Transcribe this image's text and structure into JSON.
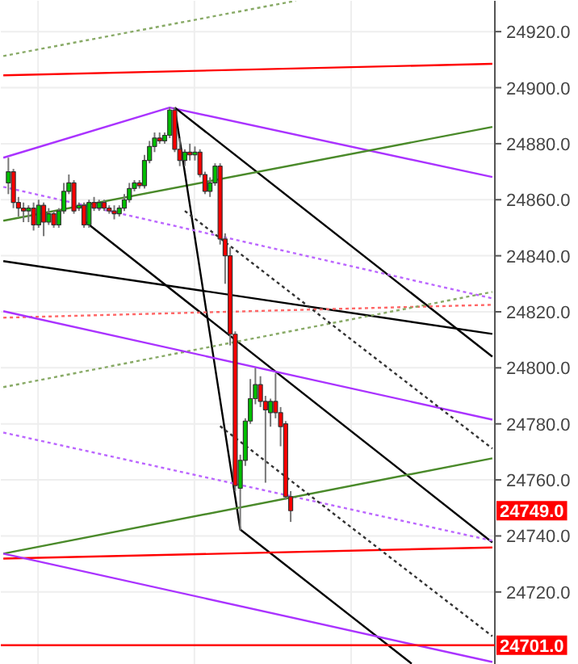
{
  "chart_data": {
    "type": "candlestick",
    "categories": [
      null,
      null,
      null,
      null,
      null,
      null,
      null,
      null,
      null,
      null,
      null,
      null,
      null,
      null,
      null,
      null,
      null,
      null,
      null,
      null,
      null,
      null,
      null,
      null,
      null,
      null,
      null,
      null,
      null,
      null,
      null,
      null,
      null,
      null,
      null,
      null,
      null,
      null,
      null,
      null,
      null,
      null,
      null,
      null,
      null,
      null,
      null,
      null,
      null,
      null,
      null,
      null,
      null,
      null,
      null,
      null,
      null,
      null,
      null,
      null,
      null,
      null,
      null,
      null,
      null,
      null,
      null,
      null,
      null,
      null,
      null,
      null,
      null,
      null,
      null,
      null,
      null,
      null,
      null,
      null,
      null,
      null,
      null,
      null,
      null,
      null,
      null,
      null,
      null,
      null,
      null,
      null,
      null,
      null,
      null,
      null,
      null,
      null
    ],
    "ohlc": [
      null,
      [
        24866,
        24875,
        24862,
        24870
      ],
      [
        24870,
        24871,
        24857,
        24859
      ],
      [
        24859,
        24861,
        24854,
        24857
      ],
      [
        24857,
        24859,
        24852,
        24856
      ],
      [
        24856,
        24858,
        24852,
        24857
      ],
      [
        24857,
        24859,
        24849,
        24851
      ],
      [
        24851,
        24860,
        24850,
        24858
      ],
      [
        24858,
        24859,
        24847,
        24852
      ],
      [
        24852,
        24857,
        24851,
        24855
      ],
      [
        24855,
        24856,
        24850,
        24851
      ],
      [
        24851,
        24857,
        24850,
        24856
      ],
      [
        24856,
        24866,
        24855,
        24863
      ],
      [
        24863,
        24869,
        24862,
        24866
      ],
      [
        24866,
        24867,
        24855,
        24856
      ],
      [
        24857,
        24859,
        24856,
        24858
      ],
      [
        24858,
        24859,
        24850,
        24851
      ],
      [
        24851,
        24860,
        24850,
        24859
      ],
      [
        24859,
        24861,
        24856,
        24857
      ],
      [
        24857,
        24860,
        24856,
        24859
      ],
      [
        24859,
        24860,
        24856,
        24857
      ],
      [
        24857,
        24858,
        24855,
        24856
      ],
      [
        24856,
        24858,
        24853,
        24855
      ],
      [
        24855,
        24858,
        24854,
        24857
      ],
      [
        24857,
        24862,
        24856,
        24860
      ],
      [
        24860,
        24866,
        24859,
        24864
      ],
      [
        24864,
        24867,
        24863,
        24866
      ],
      [
        24866,
        24867,
        24864,
        24865
      ],
      [
        24865,
        24876,
        24864,
        24874
      ],
      [
        24874,
        24881,
        24873,
        24879
      ],
      [
        24879,
        24884,
        24877,
        24882
      ],
      [
        24882,
        24884,
        24880,
        24881
      ],
      [
        24881,
        24884,
        24880,
        24883
      ],
      [
        24883,
        24893,
        24882,
        24892
      ],
      [
        24892,
        24893,
        24877,
        24878
      ],
      [
        24878,
        24882,
        24872,
        24874
      ],
      [
        24874,
        24878,
        24872,
        24877
      ],
      [
        24877,
        24880,
        24874,
        24876
      ],
      [
        24876,
        24879,
        24874,
        24877
      ],
      [
        24877,
        24878,
        24868,
        24869
      ],
      [
        24869,
        24870,
        24862,
        24863
      ],
      [
        24863,
        24868,
        24861,
        24866
      ],
      [
        24866,
        24873,
        24865,
        24872
      ],
      [
        24872,
        24873,
        24844,
        24846
      ],
      [
        24846,
        24848,
        24830,
        24840
      ],
      [
        24840,
        24843,
        24808,
        24812
      ],
      [
        24812,
        24813,
        24756,
        24758
      ],
      [
        24757,
        24769,
        24742,
        24767
      ],
      [
        24767,
        24782,
        24765,
        24781
      ],
      [
        24781,
        24796,
        24780,
        24789
      ],
      [
        24789,
        24800,
        24787,
        24794
      ],
      [
        24794,
        24797,
        24786,
        24788
      ],
      [
        24788,
        24790,
        24759,
        24785
      ],
      [
        24784,
        24789,
        24779,
        24788
      ],
      [
        24788,
        24798,
        24782,
        24784
      ],
      [
        24784,
        24786,
        24772,
        24779
      ],
      [
        24780,
        24781,
        24753,
        24754
      ],
      [
        24754,
        24756,
        24745,
        24749
      ],
      null,
      null,
      null,
      null,
      null,
      null,
      null,
      null,
      null,
      null,
      null,
      null,
      null,
      null,
      null,
      null,
      null,
      null,
      null,
      null,
      null,
      null,
      null,
      null,
      null,
      null,
      null,
      null,
      null,
      null,
      null,
      null,
      null,
      null,
      null,
      null,
      null,
      null,
      null,
      null
    ],
    "colors": [
      null,
      "#00c000",
      "#ff0000",
      "#ff0000",
      "#ff0000",
      "#00c000",
      "#ff0000",
      "#00c000",
      "#ff0000",
      "#00c000",
      "#ff0000",
      "#00c000",
      "#00c000",
      "#00c000",
      "#ff0000",
      "#00c000",
      "#ff0000",
      "#00c000",
      "#ff0000",
      "#00c000",
      "#ff0000",
      "#ff0000",
      "#ff0000",
      "#00c000",
      "#00c000",
      "#00c000",
      "#00c000",
      "#ff0000",
      "#00c000",
      "#00c000",
      "#00c000",
      "#ff0000",
      "#00c000",
      "#00c000",
      "#ff0000",
      "#ff0000",
      "#00c000",
      "#ff0000",
      "#00c000",
      "#ff0000",
      "#ff0000",
      "#00c000",
      "#00c000",
      "#ff0000",
      "#ff0000",
      "#ff0000",
      "#ff0000",
      "#00c000",
      "#00c000",
      "#00c000",
      "#00c000",
      "#ff0000",
      "#ff0000",
      "#00c000",
      "#ff0000",
      "#ff0000",
      "#ff0000",
      "#ff0000",
      null,
      null,
      null,
      null,
      null,
      null,
      null,
      null,
      null,
      null,
      null,
      null,
      null,
      null,
      null,
      null,
      null,
      null,
      null,
      null,
      null,
      null,
      null,
      null,
      null,
      null,
      null,
      null,
      null,
      null,
      null,
      null,
      null,
      null,
      null,
      null,
      null,
      null,
      null,
      null
    ],
    "series": [
      {
        "type": "line",
        "color": "#ff0000",
        "line_style": "solid",
        "values": [
          24904.4,
          null,
          null,
          null,
          null,
          null,
          null,
          null,
          null,
          null,
          null,
          null,
          null,
          null,
          null,
          null,
          null,
          null,
          null,
          null,
          null,
          null,
          null,
          null,
          null,
          null,
          null,
          null,
          null,
          null,
          null,
          null,
          null,
          null,
          null,
          null,
          null,
          null,
          null,
          null,
          null,
          null,
          null,
          null,
          null,
          null,
          null,
          null,
          null,
          null,
          null,
          null,
          null,
          null,
          null,
          null,
          null,
          null,
          null,
          null,
          null,
          null,
          null,
          null,
          null,
          null,
          null,
          null,
          null,
          null,
          null,
          null,
          null,
          null,
          null,
          null,
          null,
          null,
          null,
          null,
          null,
          null,
          null,
          null,
          null,
          null,
          null,
          null,
          null,
          null,
          null,
          null,
          null,
          null,
          null,
          null,
          null,
          24908.5
        ]
      },
      {
        "type": "line",
        "color": "#88aa66",
        "line_style": "dotted",
        "values": [
          24911.3,
          null,
          null,
          null,
          null,
          null,
          null,
          null,
          null,
          null,
          null,
          null,
          null,
          null,
          null,
          null,
          null,
          null,
          null,
          null,
          null,
          null,
          null,
          null,
          null,
          null,
          null,
          null,
          null,
          null,
          null,
          null,
          null,
          null,
          null,
          null,
          null,
          null,
          null,
          null,
          null,
          null,
          null,
          null,
          null,
          null,
          null,
          null,
          null,
          null,
          null,
          null,
          null,
          null,
          null,
          null,
          null,
          null,
          24931,
          null,
          null,
          null,
          null,
          null,
          null,
          null,
          null,
          null,
          null,
          null,
          null,
          null,
          null,
          null,
          null,
          null,
          null,
          null,
          null,
          null,
          null,
          null,
          null,
          null,
          null,
          null,
          null,
          null,
          null,
          null,
          null,
          null,
          null,
          null,
          null,
          null,
          null,
          null
        ]
      },
      {
        "type": "line",
        "color": "#aa33ff",
        "line_style": "solid",
        "values": [
          24875,
          null,
          null,
          null,
          null,
          null,
          null,
          null,
          null,
          null,
          null,
          null,
          null,
          null,
          null,
          null,
          null,
          null,
          null,
          null,
          null,
          null,
          null,
          null,
          null,
          null,
          null,
          null,
          null,
          null,
          null,
          null,
          null,
          24892.9,
          null,
          null,
          null,
          null,
          null,
          null,
          null,
          null,
          null,
          null,
          null,
          null,
          null,
          null,
          null,
          null,
          null,
          null,
          null,
          null,
          null,
          null,
          null,
          null,
          null,
          null,
          null,
          null,
          null,
          null,
          null,
          null,
          null,
          null,
          null,
          null,
          null,
          null,
          null,
          null,
          null,
          null,
          null,
          null,
          null,
          null,
          null,
          null,
          null,
          null,
          null,
          null,
          null,
          null,
          null,
          null,
          null,
          null,
          null,
          null,
          null,
          null,
          null,
          24868.1
        ]
      },
      {
        "type": "line",
        "color": "#000000",
        "line_style": "solid",
        "values": [
          null,
          null,
          null,
          null,
          null,
          null,
          null,
          null,
          null,
          null,
          null,
          null,
          null,
          null,
          null,
          null,
          null,
          null,
          null,
          null,
          null,
          null,
          null,
          null,
          null,
          null,
          null,
          null,
          null,
          null,
          null,
          null,
          null,
          null,
          24892.9,
          null,
          null,
          null,
          null,
          null,
          null,
          null,
          null,
          null,
          null,
          null,
          null,
          null,
          null,
          null,
          null,
          null,
          null,
          null,
          null,
          null,
          null,
          null,
          null,
          null,
          null,
          null,
          null,
          null,
          null,
          null,
          null,
          null,
          null,
          null,
          null,
          null,
          null,
          null,
          null,
          null,
          null,
          null,
          null,
          null,
          null,
          null,
          null,
          null,
          null,
          null,
          null,
          null,
          null,
          null,
          null,
          null,
          null,
          null,
          null,
          null,
          null,
          24804
        ]
      },
      {
        "type": "line",
        "color": "#4a8a2a",
        "line_style": "solid",
        "values": [
          24852.5,
          null,
          null,
          null,
          null,
          null,
          null,
          null,
          null,
          null,
          null,
          null,
          null,
          null,
          null,
          null,
          null,
          null,
          null,
          null,
          null,
          null,
          null,
          null,
          null,
          null,
          null,
          null,
          null,
          null,
          null,
          null,
          null,
          null,
          null,
          null,
          null,
          null,
          null,
          null,
          null,
          null,
          null,
          null,
          null,
          null,
          null,
          null,
          null,
          null,
          null,
          null,
          null,
          null,
          null,
          null,
          null,
          null,
          null,
          null,
          null,
          null,
          null,
          null,
          null,
          null,
          null,
          null,
          null,
          null,
          null,
          null,
          null,
          null,
          null,
          null,
          null,
          null,
          null,
          null,
          null,
          null,
          null,
          null,
          null,
          null,
          null,
          null,
          null,
          null,
          null,
          null,
          null,
          null,
          null,
          null,
          null,
          24886
        ]
      },
      {
        "type": "line",
        "color": "#000000",
        "line_style": "solid",
        "values": [
          null,
          null,
          null,
          null,
          null,
          null,
          null,
          null,
          null,
          null,
          null,
          null,
          null,
          null,
          null,
          null,
          24852.5,
          null,
          null,
          null,
          null,
          null,
          null,
          null,
          null,
          null,
          null,
          null,
          null,
          null,
          null,
          null,
          null,
          null,
          null,
          null,
          null,
          null,
          null,
          null,
          null,
          null,
          null,
          null,
          null,
          null,
          null,
          null,
          null,
          null,
          null,
          null,
          null,
          null,
          null,
          null,
          null,
          null,
          null,
          null,
          null,
          null,
          null,
          null,
          null,
          null,
          null,
          null,
          null,
          null,
          null,
          null,
          null,
          null,
          null,
          null,
          null,
          null,
          null,
          null,
          null,
          null,
          null,
          null,
          null,
          null,
          null,
          null,
          null,
          null,
          null,
          null,
          null,
          null,
          null,
          null,
          null,
          24737.7
        ]
      },
      {
        "type": "line",
        "color": "#000000",
        "line_style": "solid",
        "values": [
          null,
          null,
          null,
          null,
          null,
          null,
          null,
          null,
          null,
          null,
          null,
          null,
          null,
          null,
          null,
          null,
          null,
          null,
          null,
          null,
          null,
          null,
          null,
          null,
          null,
          null,
          null,
          null,
          null,
          null,
          null,
          null,
          null,
          null,
          24892.9,
          null,
          null,
          null,
          null,
          null,
          null,
          null,
          null,
          null,
          null,
          null,
          null,
          24742.3,
          null,
          null,
          null,
          null,
          null,
          null,
          null,
          null,
          null,
          null,
          null,
          null,
          null,
          null,
          null,
          null,
          null,
          null,
          null,
          null,
          null,
          null,
          null,
          null,
          null,
          null,
          null,
          null,
          null,
          null,
          null,
          null,
          null,
          24694.4,
          null,
          null,
          null,
          null,
          null,
          null,
          null,
          null,
          null,
          null,
          null,
          null,
          null,
          null,
          null,
          null
        ]
      },
      {
        "type": "line",
        "color": "#bb66ff",
        "line_style": "dotted",
        "values": [
          24864.6,
          null,
          null,
          null,
          null,
          null,
          null,
          null,
          null,
          null,
          null,
          null,
          null,
          null,
          null,
          null,
          null,
          null,
          null,
          null,
          null,
          null,
          null,
          null,
          null,
          null,
          null,
          null,
          null,
          null,
          null,
          null,
          null,
          null,
          null,
          null,
          null,
          null,
          null,
          null,
          null,
          null,
          null,
          null,
          null,
          null,
          null,
          null,
          null,
          null,
          null,
          null,
          null,
          null,
          null,
          null,
          null,
          null,
          null,
          null,
          null,
          null,
          null,
          null,
          null,
          null,
          null,
          null,
          null,
          null,
          null,
          null,
          null,
          null,
          null,
          null,
          null,
          null,
          null,
          null,
          null,
          null,
          null,
          null,
          null,
          null,
          null,
          null,
          null,
          null,
          null,
          null,
          null,
          null,
          null,
          null,
          null,
          24824.8
        ]
      },
      {
        "type": "line",
        "color": "#000000",
        "line_style": "solid",
        "values": [
          24838.1,
          null,
          null,
          null,
          null,
          null,
          null,
          null,
          null,
          null,
          null,
          null,
          null,
          null,
          null,
          null,
          null,
          null,
          null,
          null,
          null,
          null,
          null,
          null,
          null,
          null,
          null,
          null,
          null,
          null,
          null,
          null,
          null,
          null,
          null,
          null,
          null,
          null,
          null,
          null,
          null,
          null,
          null,
          null,
          null,
          null,
          null,
          null,
          null,
          null,
          null,
          null,
          null,
          null,
          null,
          null,
          null,
          null,
          null,
          null,
          null,
          null,
          null,
          null,
          null,
          null,
          null,
          null,
          null,
          null,
          null,
          null,
          null,
          null,
          null,
          null,
          null,
          null,
          null,
          null,
          null,
          null,
          null,
          null,
          null,
          null,
          null,
          null,
          null,
          null,
          null,
          null,
          null,
          null,
          null,
          null,
          null,
          24812.1
        ]
      },
      {
        "type": "line",
        "color": "#ff6666",
        "line_style": "dotted",
        "values": [
          24817.9,
          null,
          null,
          null,
          null,
          null,
          null,
          null,
          null,
          null,
          null,
          null,
          null,
          null,
          null,
          null,
          null,
          null,
          null,
          null,
          null,
          null,
          null,
          null,
          null,
          null,
          null,
          null,
          null,
          null,
          null,
          null,
          null,
          null,
          null,
          null,
          null,
          null,
          null,
          null,
          null,
          null,
          null,
          null,
          null,
          null,
          null,
          null,
          null,
          null,
          null,
          null,
          null,
          null,
          null,
          null,
          null,
          null,
          null,
          null,
          null,
          null,
          null,
          null,
          null,
          null,
          null,
          null,
          null,
          null,
          null,
          null,
          null,
          null,
          null,
          null,
          null,
          null,
          null,
          null,
          null,
          null,
          null,
          null,
          null,
          null,
          null,
          null,
          null,
          null,
          null,
          null,
          null,
          null,
          null,
          null,
          null,
          24822.5
        ]
      },
      {
        "type": "line",
        "color": "#88aa66",
        "line_style": "dotted",
        "values": [
          24793.1,
          null,
          null,
          null,
          null,
          null,
          null,
          null,
          null,
          null,
          null,
          null,
          null,
          null,
          null,
          null,
          null,
          null,
          null,
          null,
          null,
          null,
          null,
          null,
          null,
          null,
          null,
          null,
          null,
          null,
          null,
          null,
          null,
          null,
          null,
          null,
          null,
          null,
          null,
          null,
          null,
          null,
          null,
          null,
          null,
          null,
          null,
          null,
          null,
          null,
          null,
          null,
          null,
          null,
          null,
          null,
          null,
          null,
          null,
          null,
          null,
          null,
          null,
          null,
          null,
          null,
          null,
          null,
          null,
          null,
          null,
          null,
          null,
          null,
          null,
          null,
          null,
          null,
          null,
          null,
          null,
          null,
          null,
          null,
          null,
          null,
          null,
          null,
          null,
          null,
          null,
          null,
          null,
          null,
          null,
          null,
          null,
          24827.1
        ]
      },
      {
        "type": "line",
        "color": "#aa33ff",
        "line_style": "solid",
        "values": [
          24820.2,
          null,
          null,
          null,
          null,
          null,
          null,
          null,
          null,
          null,
          null,
          null,
          null,
          null,
          null,
          null,
          null,
          null,
          null,
          null,
          null,
          null,
          null,
          null,
          null,
          null,
          null,
          null,
          null,
          null,
          null,
          null,
          null,
          null,
          null,
          null,
          null,
          null,
          null,
          null,
          null,
          null,
          null,
          null,
          null,
          null,
          null,
          null,
          null,
          null,
          null,
          null,
          null,
          null,
          null,
          null,
          null,
          null,
          null,
          null,
          null,
          null,
          null,
          null,
          null,
          null,
          null,
          null,
          null,
          null,
          null,
          null,
          null,
          null,
          null,
          null,
          null,
          null,
          null,
          null,
          null,
          null,
          null,
          null,
          null,
          null,
          null,
          null,
          null,
          null,
          null,
          null,
          null,
          null,
          null,
          null,
          null,
          24781.5
        ]
      },
      {
        "type": "line",
        "color": "#333333",
        "line_style": "dotted",
        "values": [
          null,
          null,
          null,
          null,
          null,
          null,
          null,
          null,
          null,
          null,
          null,
          null,
          null,
          null,
          null,
          null,
          null,
          null,
          null,
          null,
          null,
          null,
          null,
          null,
          null,
          null,
          null,
          null,
          null,
          null,
          null,
          null,
          null,
          null,
          null,
          null,
          24856,
          null,
          null,
          null,
          null,
          null,
          null,
          null,
          null,
          null,
          null,
          null,
          null,
          null,
          null,
          null,
          null,
          null,
          null,
          null,
          null,
          null,
          null,
          null,
          null,
          null,
          null,
          null,
          null,
          null,
          null,
          null,
          null,
          null,
          null,
          null,
          null,
          null,
          null,
          null,
          null,
          null,
          null,
          null,
          null,
          null,
          null,
          null,
          null,
          null,
          null,
          null,
          null,
          null,
          null,
          null,
          null,
          null,
          null,
          null,
          null,
          24771.2
        ]
      },
      {
        "type": "line",
        "color": "#bb66ff",
        "line_style": "dotted",
        "values": [
          24776.9,
          null,
          null,
          null,
          null,
          null,
          null,
          null,
          null,
          null,
          null,
          null,
          null,
          null,
          null,
          null,
          null,
          null,
          null,
          null,
          null,
          null,
          null,
          null,
          null,
          null,
          null,
          null,
          null,
          null,
          null,
          null,
          null,
          null,
          null,
          null,
          null,
          null,
          null,
          null,
          null,
          null,
          null,
          null,
          null,
          null,
          null,
          null,
          null,
          null,
          null,
          null,
          null,
          null,
          null,
          null,
          null,
          null,
          null,
          null,
          null,
          null,
          null,
          null,
          null,
          null,
          null,
          null,
          null,
          null,
          null,
          null,
          null,
          null,
          null,
          null,
          null,
          null,
          null,
          null,
          null,
          null,
          null,
          null,
          null,
          null,
          null,
          null,
          null,
          null,
          null,
          null,
          null,
          null,
          null,
          null,
          null,
          24738.3
        ]
      },
      {
        "type": "line",
        "color": "#4a8a2a",
        "line_style": "solid",
        "values": [
          24733.7,
          null,
          null,
          null,
          null,
          null,
          null,
          null,
          null,
          null,
          null,
          null,
          null,
          null,
          null,
          null,
          null,
          null,
          null,
          null,
          null,
          null,
          null,
          null,
          null,
          null,
          null,
          null,
          null,
          null,
          null,
          null,
          null,
          null,
          null,
          null,
          null,
          null,
          null,
          null,
          null,
          null,
          null,
          null,
          null,
          null,
          null,
          null,
          null,
          null,
          null,
          null,
          null,
          null,
          null,
          null,
          null,
          null,
          null,
          null,
          null,
          null,
          null,
          null,
          null,
          null,
          null,
          null,
          null,
          null,
          null,
          null,
          null,
          null,
          null,
          null,
          null,
          null,
          null,
          null,
          null,
          null,
          null,
          null,
          null,
          null,
          null,
          null,
          null,
          null,
          null,
          null,
          null,
          null,
          null,
          null,
          null,
          24767.7
        ]
      },
      {
        "type": "line",
        "color": "#ff0000",
        "line_style": "solid",
        "values": [
          24731.9,
          null,
          null,
          null,
          null,
          null,
          null,
          null,
          null,
          null,
          null,
          null,
          null,
          null,
          null,
          null,
          null,
          null,
          null,
          null,
          null,
          null,
          null,
          null,
          null,
          null,
          null,
          null,
          null,
          null,
          null,
          null,
          null,
          null,
          null,
          null,
          null,
          null,
          null,
          null,
          null,
          null,
          null,
          null,
          null,
          null,
          null,
          null,
          null,
          null,
          null,
          null,
          null,
          null,
          null,
          null,
          null,
          null,
          null,
          null,
          null,
          null,
          null,
          null,
          null,
          null,
          null,
          null,
          null,
          null,
          null,
          null,
          null,
          null,
          null,
          null,
          null,
          null,
          null,
          null,
          null,
          null,
          null,
          null,
          null,
          null,
          null,
          null,
          null,
          null,
          null,
          null,
          null,
          null,
          null,
          null,
          null,
          24735.9
        ]
      },
      {
        "type": "line",
        "color": "#333333",
        "line_style": "dotted",
        "values": [
          null,
          null,
          null,
          null,
          null,
          null,
          null,
          null,
          null,
          null,
          null,
          null,
          null,
          null,
          null,
          null,
          null,
          null,
          null,
          null,
          null,
          null,
          null,
          null,
          null,
          null,
          null,
          null,
          null,
          null,
          null,
          null,
          null,
          null,
          null,
          null,
          null,
          null,
          null,
          null,
          null,
          null,
          null,
          24779.2,
          null,
          null,
          null,
          null,
          null,
          null,
          null,
          null,
          null,
          null,
          null,
          null,
          null,
          null,
          null,
          null,
          null,
          null,
          null,
          null,
          null,
          null,
          null,
          null,
          null,
          null,
          null,
          null,
          null,
          null,
          null,
          null,
          null,
          null,
          null,
          null,
          null,
          null,
          null,
          null,
          null,
          null,
          null,
          null,
          null,
          null,
          null,
          null,
          null,
          null,
          null,
          null,
          null,
          24704.2
        ]
      },
      {
        "type": "line",
        "color": "#aa33ff",
        "line_style": "solid",
        "values": [
          24733.7,
          null,
          null,
          null,
          null,
          null,
          null,
          null,
          null,
          null,
          null,
          null,
          null,
          null,
          null,
          null,
          null,
          null,
          null,
          null,
          null,
          null,
          null,
          null,
          null,
          null,
          null,
          null,
          null,
          null,
          null,
          null,
          null,
          null,
          null,
          null,
          null,
          null,
          null,
          null,
          null,
          null,
          null,
          null,
          null,
          null,
          null,
          null,
          null,
          null,
          null,
          null,
          null,
          null,
          null,
          null,
          null,
          null,
          null,
          null,
          null,
          null,
          null,
          null,
          null,
          null,
          null,
          null,
          null,
          null,
          null,
          null,
          null,
          null,
          null,
          null,
          null,
          null,
          null,
          null,
          null,
          null,
          null,
          null,
          null,
          null,
          null,
          null,
          null,
          null,
          null,
          null,
          null,
          null,
          null,
          null,
          null,
          24695
        ]
      }
    ],
    "ref_lines": [
      {
        "axis": "y",
        "value": 24701,
        "label": "24701.0",
        "color": "#ff0000"
      }
    ],
    "annotations": [
      "24749.0"
    ],
    "ylim": [
      24694,
      24931
    ],
    "yticks": [
      {
        "value": 24720,
        "label": "24720.0"
      },
      {
        "value": 24740,
        "label": "24740.0"
      },
      {
        "value": 24760,
        "label": "24760.0"
      },
      {
        "value": 24780,
        "label": "24780.0"
      },
      {
        "value": 24800,
        "label": "24800.0"
      },
      {
        "value": 24820,
        "label": "24820.0"
      },
      {
        "value": 24840,
        "label": "24840.0"
      },
      {
        "value": 24860,
        "label": "24860.0"
      },
      {
        "value": 24880,
        "label": "24880.0"
      },
      {
        "value": 24900,
        "label": "24900.0"
      },
      {
        "value": 24920,
        "label": "24920.0"
      }
    ],
    "tick_labels": "y",
    "grid": true
  }
}
